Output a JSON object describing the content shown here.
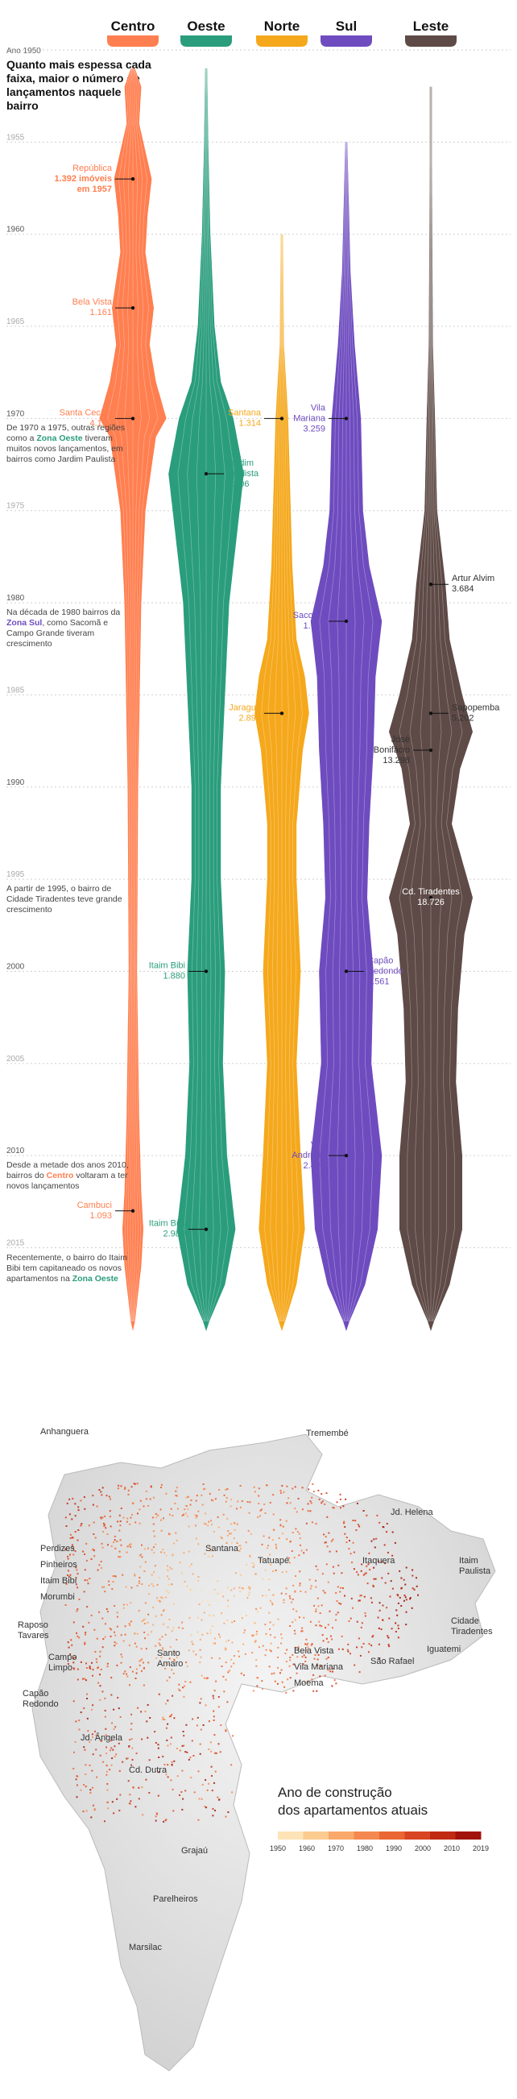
{
  "headline": "Quanto mais espessa cada faixa, maior o número de lançamentos naquele bairro",
  "year_axis_label": "Ano 1950",
  "regions": [
    {
      "name": "Centro",
      "color": "#FF7F50"
    },
    {
      "name": "Oeste",
      "color": "#2A9D7C"
    },
    {
      "name": "Norte",
      "color": "#F5A81C"
    },
    {
      "name": "Sul",
      "color": "#6E4CBF"
    },
    {
      "name": "Leste",
      "color": "#5E4A46"
    }
  ],
  "chart_data": {
    "type": "area",
    "y_axis": "year",
    "ylim": [
      1950,
      2019
    ],
    "ticks": [
      "1955",
      "1960",
      "1965",
      "1970",
      "1975",
      "1980",
      "1985",
      "1990",
      "1995",
      "2000",
      "2005",
      "2010",
      "2015"
    ],
    "callouts": [
      {
        "region": "Centro",
        "name": "República",
        "value": "1.392 imóveis",
        "sub": "em 1957",
        "year": 1957
      },
      {
        "region": "Centro",
        "name": "Bela Vista",
        "value": "1.161",
        "year": 1964
      },
      {
        "region": "Centro",
        "name": "Santa Cecília",
        "value": "4.178",
        "year": 1970
      },
      {
        "region": "Centro",
        "name": "Cambuci",
        "value": "1.093",
        "year": 2013
      },
      {
        "region": "Oeste",
        "name": "Jardim",
        "value": "Paulista",
        "sub": "3.406",
        "year": 1973
      },
      {
        "region": "Oeste",
        "name": "Itaim Bibi",
        "value": "1.880",
        "year": 2000
      },
      {
        "region": "Oeste",
        "name": "Itaim Bibi",
        "value": "2.980",
        "year": 2014
      },
      {
        "region": "Norte",
        "name": "Santana",
        "value": "1.314",
        "year": 1970
      },
      {
        "region": "Norte",
        "name": "Jaraguá",
        "value": "2.891",
        "year": 1986
      },
      {
        "region": "Sul",
        "name": "Vila",
        "value": "Mariana",
        "sub": "3.259",
        "year": 1970
      },
      {
        "region": "Sul",
        "name": "Sacomã",
        "value": "1.745",
        "year": 1981
      },
      {
        "region": "Sul",
        "name": "Capão",
        "value": "Redondo",
        "sub": "2.561",
        "year": 2000
      },
      {
        "region": "Sul",
        "name": "Vila",
        "value": "Andrade",
        "sub": "2.495",
        "year": 2010
      },
      {
        "region": "Leste",
        "name": "Artur Alvim",
        "value": "3.684",
        "year": 1979
      },
      {
        "region": "Leste",
        "name": "Sapopemba",
        "value": "5.202",
        "year": 1986
      },
      {
        "region": "Leste",
        "name": "José",
        "value": "Bonifácio",
        "sub": "13.298",
        "year": 1988
      },
      {
        "region": "Leste",
        "name": "Cd. Tiradentes",
        "value": "18.726",
        "year": 1996
      }
    ],
    "series": [
      {
        "name": "Centro",
        "widths": [
          [
            1951,
            2
          ],
          [
            1952,
            8
          ],
          [
            1954,
            6
          ],
          [
            1957,
            18
          ],
          [
            1959,
            14
          ],
          [
            1961,
            12
          ],
          [
            1964,
            20
          ],
          [
            1966,
            16
          ],
          [
            1968,
            22
          ],
          [
            1970,
            32
          ],
          [
            1971,
            22
          ],
          [
            1975,
            12
          ],
          [
            1980,
            8
          ],
          [
            1990,
            5
          ],
          [
            2000,
            4
          ],
          [
            2008,
            6
          ],
          [
            2012,
            8
          ],
          [
            2014,
            10
          ],
          [
            2016,
            8
          ],
          [
            2019,
            2
          ]
        ]
      },
      {
        "name": "Oeste",
        "widths": [
          [
            1951,
            1
          ],
          [
            1955,
            2
          ],
          [
            1960,
            4
          ],
          [
            1965,
            8
          ],
          [
            1968,
            14
          ],
          [
            1970,
            26
          ],
          [
            1973,
            36
          ],
          [
            1976,
            30
          ],
          [
            1980,
            22
          ],
          [
            1985,
            18
          ],
          [
            1990,
            14
          ],
          [
            1995,
            14
          ],
          [
            2000,
            18
          ],
          [
            2005,
            16
          ],
          [
            2010,
            20
          ],
          [
            2014,
            28
          ],
          [
            2017,
            18
          ],
          [
            2019,
            3
          ]
        ]
      },
      {
        "name": "Norte",
        "widths": [
          [
            1960,
            1
          ],
          [
            1966,
            2
          ],
          [
            1970,
            6
          ],
          [
            1974,
            8
          ],
          [
            1978,
            10
          ],
          [
            1982,
            14
          ],
          [
            1984,
            22
          ],
          [
            1986,
            26
          ],
          [
            1988,
            20
          ],
          [
            1992,
            14
          ],
          [
            1995,
            14
          ],
          [
            2000,
            18
          ],
          [
            2005,
            14
          ],
          [
            2010,
            18
          ],
          [
            2014,
            22
          ],
          [
            2017,
            14
          ],
          [
            2019,
            3
          ]
        ]
      },
      {
        "name": "Sul",
        "widths": [
          [
            1955,
            1
          ],
          [
            1962,
            4
          ],
          [
            1966,
            8
          ],
          [
            1970,
            14
          ],
          [
            1975,
            16
          ],
          [
            1978,
            22
          ],
          [
            1981,
            34
          ],
          [
            1984,
            28
          ],
          [
            1988,
            26
          ],
          [
            1992,
            22
          ],
          [
            1996,
            20
          ],
          [
            2000,
            26
          ],
          [
            2005,
            24
          ],
          [
            2010,
            34
          ],
          [
            2014,
            30
          ],
          [
            2017,
            18
          ],
          [
            2019,
            3
          ]
        ]
      },
      {
        "name": "Leste",
        "widths": [
          [
            1952,
            1
          ],
          [
            1956,
            1
          ],
          [
            1966,
            2
          ],
          [
            1970,
            4
          ],
          [
            1975,
            6
          ],
          [
            1979,
            14
          ],
          [
            1982,
            18
          ],
          [
            1985,
            30
          ],
          [
            1987,
            40
          ],
          [
            1989,
            28
          ],
          [
            1992,
            20
          ],
          [
            1996,
            40
          ],
          [
            1998,
            32
          ],
          [
            2002,
            26
          ],
          [
            2006,
            24
          ],
          [
            2010,
            30
          ],
          [
            2014,
            30
          ],
          [
            2017,
            18
          ],
          [
            2019,
            3
          ]
        ]
      }
    ]
  },
  "notes": [
    {
      "text_before": "De 1970 a 1975, outras regiões como a ",
      "highlight": "Zona Oeste",
      "color": "#2A9D7C",
      "text_after": " tiveram muitos novos lançamentos, em bairros como Jardim Paulista",
      "year": 1970
    },
    {
      "text_before": "Na década de 1980 bairros da ",
      "highlight": "Zona Sul",
      "color": "#6E4CBF",
      "text_after": ", como Sacomã e Campo Grande tiveram crescimento",
      "year": 1980
    },
    {
      "text_before": "A partir de 1995, o bairro de Cidade Tiradentes teve grande crescimento",
      "highlight": "",
      "color": "",
      "text_after": "",
      "year": 1995
    },
    {
      "text_before": "Desde a metade dos anos 2010, bairros do ",
      "highlight": "Centro",
      "color": "#FF7F50",
      "text_after": " voltaram a ter novos lançamentos",
      "year": 2010
    },
    {
      "text_before": "Recentemente, o bairro do Itaim Bibi tem capitaneado os novos apartamentos na ",
      "highlight": "Zona Oeste",
      "color": "#2A9D7C",
      "text_after": "",
      "year": 2015
    }
  ],
  "map": {
    "labels": [
      "Anhanguera",
      "Tremembé",
      "Jd. Helena",
      "Santana",
      "Tatuapé",
      "Itaquera",
      "Itaim Paulista",
      "Perdizes",
      "Pinheiros",
      "Itaim Bibi",
      "Morumbi",
      "Raposo Tavares",
      "Campo Limpo",
      "Capão Redondo",
      "Santo Amaro",
      "Bela Vista",
      "Vila Mariana",
      "Moema",
      "São Rafael",
      "Cidade Tiradentes",
      "Iguatemi",
      "Jd. Ângela",
      "Cd. Dutra",
      "Grajaú",
      "Parelheiros",
      "Marsilac"
    ],
    "legend_title_1": "Ano de construção",
    "legend_title_2": "dos apartamentos atuais",
    "legend_ticks": [
      "1950",
      "1960",
      "1970",
      "1980",
      "1990",
      "2000",
      "2010",
      "2019"
    ],
    "legend_colors": [
      "#FDE3B5",
      "#FCCB8F",
      "#F9A96B",
      "#F48850",
      "#EA6633",
      "#D84522",
      "#C02A12",
      "#A1130A"
    ]
  }
}
